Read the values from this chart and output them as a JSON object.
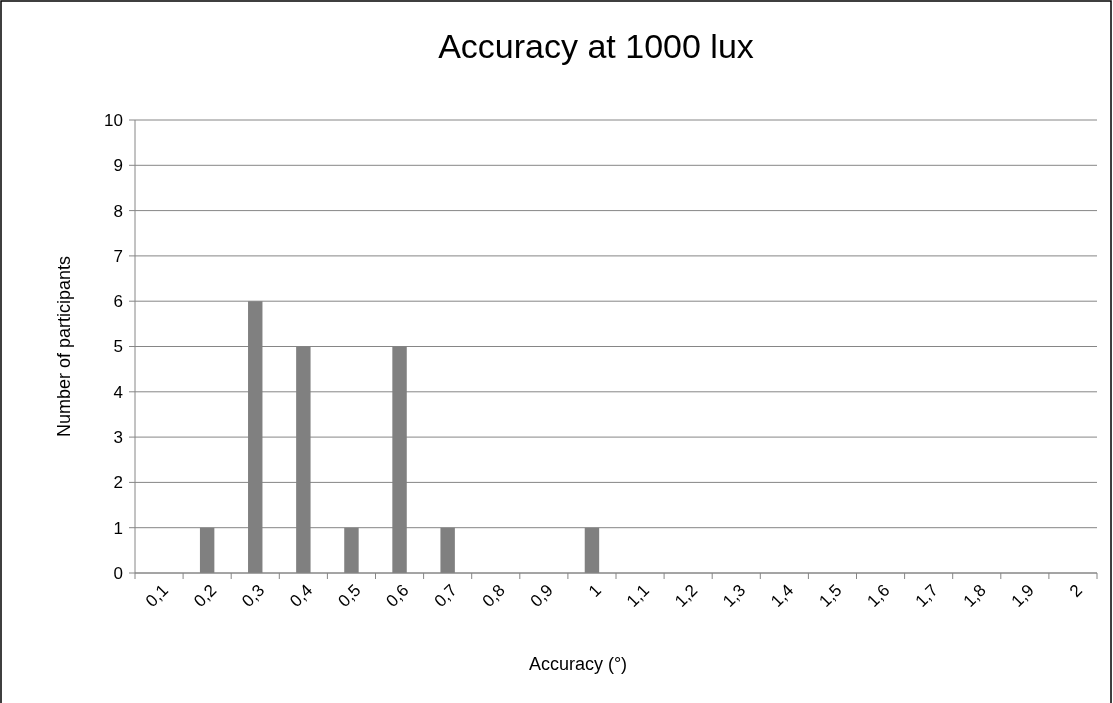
{
  "chart_data": {
    "type": "bar",
    "title": "Accuracy at 1000 lux",
    "xlabel": "Accuracy (°)",
    "ylabel": "Number of participants",
    "categories": [
      "0,1",
      "0,2",
      "0,3",
      "0,4",
      "0,5",
      "0,6",
      "0,7",
      "0,8",
      "0,9",
      "1",
      "1,1",
      "1,2",
      "1,3",
      "1,4",
      "1,5",
      "1,6",
      "1,7",
      "1,8",
      "1,9",
      "2"
    ],
    "values": [
      0,
      1,
      6,
      5,
      1,
      5,
      1,
      0,
      0,
      1,
      0,
      0,
      0,
      0,
      0,
      0,
      0,
      0,
      0,
      0
    ],
    "color": "#808080",
    "ylim": [
      0,
      10
    ],
    "yticks": [
      0,
      1,
      2,
      3,
      4,
      5,
      6,
      7,
      8,
      9,
      10
    ],
    "grid": "y"
  }
}
